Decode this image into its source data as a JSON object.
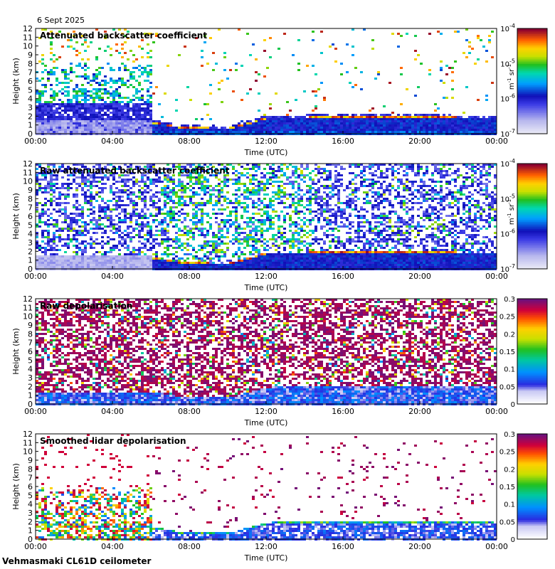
{
  "date_label": "6 Sept 2025",
  "footer": "Vehmasmaki CL61D ceilometer",
  "time_ticks": [
    "00:00",
    "04:00",
    "08:00",
    "12:00",
    "16:00",
    "20:00",
    "00:00"
  ],
  "height_ticks": [
    "0",
    "1",
    "2",
    "3",
    "4",
    "5",
    "6",
    "7",
    "8",
    "9",
    "10",
    "11",
    "12"
  ],
  "ylabel": "Height (km)",
  "xlabel": "Time (UTC)",
  "colorbar_log_ticks": [
    "10",
    "10",
    "10",
    "10"
  ],
  "colorbar_log_exps": [
    "-7",
    "-6",
    "-5",
    "-4"
  ],
  "colorbar_unit": {
    "m": "m",
    "m_exp": "-1",
    "sr": "sr",
    "sr_exp": "-1"
  },
  "colorbar_lin_ticks": [
    "0",
    "0.05",
    "0.1",
    "0.15",
    "0.2",
    "0.25",
    "0.3"
  ],
  "chart_data": [
    {
      "type": "heatmap",
      "title": "Attenuated backscatter coefficient",
      "xlabel": "Time (UTC)",
      "ylabel": "Height (km)",
      "xlim": [
        "00:00",
        "24:00"
      ],
      "ylim": [
        0,
        12
      ],
      "color_scale": "log",
      "clim": [
        1e-07,
        0.0001
      ],
      "colorbar_label": "m-1 sr-1",
      "cloud_base_km": [
        {
          "t": "06:00",
          "h": 1.2
        },
        {
          "t": "07:30",
          "h": 0.6
        },
        {
          "t": "10:00",
          "h": 0.5
        },
        {
          "t": "12:00",
          "h": 1.7
        },
        {
          "t": "16:00",
          "h": 1.8
        },
        {
          "t": "20:00",
          "h": 1.8
        },
        {
          "t": "24:00",
          "h": 1.7
        }
      ]
    },
    {
      "type": "heatmap",
      "title": "Raw attenuated backscatter coefficient",
      "xlabel": "Time (UTC)",
      "ylabel": "Height (km)",
      "xlim": [
        "00:00",
        "24:00"
      ],
      "ylim": [
        0,
        12
      ],
      "color_scale": "log",
      "clim": [
        1e-07,
        0.0001
      ],
      "colorbar_label": "m-1 sr-1"
    },
    {
      "type": "heatmap",
      "title": "Raw depolarisation",
      "xlabel": "Time (UTC)",
      "ylabel": "Height (km)",
      "xlim": [
        "00:00",
        "24:00"
      ],
      "ylim": [
        0,
        12
      ],
      "color_scale": "linear",
      "clim": [
        0,
        0.3
      ]
    },
    {
      "type": "heatmap",
      "title": "Smoothed lidar depolarisation",
      "xlabel": "Time (UTC)",
      "ylabel": "Height (km)",
      "xlim": [
        "00:00",
        "24:00"
      ],
      "ylim": [
        0,
        12
      ],
      "color_scale": "linear",
      "clim": [
        0,
        0.3
      ]
    }
  ]
}
